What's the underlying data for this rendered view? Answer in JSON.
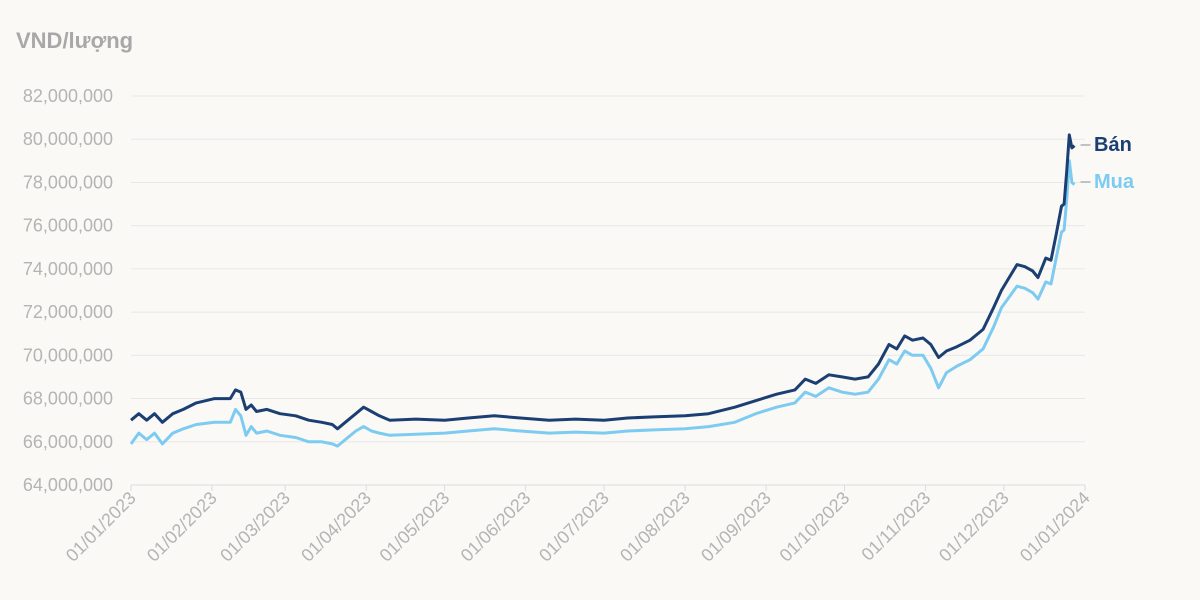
{
  "chart_data": {
    "type": "line",
    "unit_label": "VND/lượng",
    "ylim": [
      64000000,
      82000000
    ],
    "yticks": [
      {
        "value": 64000000,
        "label": "64,000,000"
      },
      {
        "value": 66000000,
        "label": "66,000,000"
      },
      {
        "value": 68000000,
        "label": "68,000,000"
      },
      {
        "value": 70000000,
        "label": "70,000,000"
      },
      {
        "value": 72000000,
        "label": "72,000,000"
      },
      {
        "value": 74000000,
        "label": "74,000,000"
      },
      {
        "value": 76000000,
        "label": "76,000,000"
      },
      {
        "value": 78000000,
        "label": "78,000,000"
      },
      {
        "value": 80000000,
        "label": "80,000,000"
      },
      {
        "value": 82000000,
        "label": "82,000,000"
      }
    ],
    "xlim": [
      "2023-01-01",
      "2024-01-01"
    ],
    "xticks": [
      {
        "date": "2023-01-01",
        "label": "01/01/2023"
      },
      {
        "date": "2023-02-01",
        "label": "01/02/2023"
      },
      {
        "date": "2023-03-01",
        "label": "01/03/2023"
      },
      {
        "date": "2023-04-01",
        "label": "01/04/2023"
      },
      {
        "date": "2023-05-01",
        "label": "01/05/2023"
      },
      {
        "date": "2023-06-01",
        "label": "01/06/2023"
      },
      {
        "date": "2023-07-01",
        "label": "01/07/2023"
      },
      {
        "date": "2023-08-01",
        "label": "01/08/2023"
      },
      {
        "date": "2023-09-01",
        "label": "01/09/2023"
      },
      {
        "date": "2023-10-01",
        "label": "01/10/2023"
      },
      {
        "date": "2023-11-01",
        "label": "01/11/2023"
      },
      {
        "date": "2023-12-01",
        "label": "01/12/2023"
      },
      {
        "date": "2024-01-01",
        "label": "01/01/2024"
      }
    ],
    "grid": "horizontal",
    "legend": "end-of-line labels, right",
    "series": [
      {
        "name": "Bán",
        "color": "#1c3f73",
        "points": [
          [
            "2023-01-01",
            67000000
          ],
          [
            "2023-01-04",
            67300000
          ],
          [
            "2023-01-07",
            67000000
          ],
          [
            "2023-01-10",
            67300000
          ],
          [
            "2023-01-13",
            66900000
          ],
          [
            "2023-01-17",
            67300000
          ],
          [
            "2023-01-21",
            67500000
          ],
          [
            "2023-01-26",
            67800000
          ],
          [
            "2023-02-02",
            68000000
          ],
          [
            "2023-02-08",
            68000000
          ],
          [
            "2023-02-10",
            68400000
          ],
          [
            "2023-02-12",
            68300000
          ],
          [
            "2023-02-14",
            67500000
          ],
          [
            "2023-02-16",
            67700000
          ],
          [
            "2023-02-18",
            67400000
          ],
          [
            "2023-02-22",
            67500000
          ],
          [
            "2023-02-27",
            67300000
          ],
          [
            "2023-03-05",
            67200000
          ],
          [
            "2023-03-10",
            67000000
          ],
          [
            "2023-03-15",
            66900000
          ],
          [
            "2023-03-19",
            66800000
          ],
          [
            "2023-03-21",
            66600000
          ],
          [
            "2023-03-24",
            66900000
          ],
          [
            "2023-03-28",
            67300000
          ],
          [
            "2023-03-31",
            67600000
          ],
          [
            "2023-04-03",
            67400000
          ],
          [
            "2023-04-06",
            67200000
          ],
          [
            "2023-04-10",
            67000000
          ],
          [
            "2023-04-20",
            67050000
          ],
          [
            "2023-05-01",
            67000000
          ],
          [
            "2023-05-10",
            67100000
          ],
          [
            "2023-05-20",
            67200000
          ],
          [
            "2023-05-30",
            67100000
          ],
          [
            "2023-06-10",
            67000000
          ],
          [
            "2023-06-20",
            67050000
          ],
          [
            "2023-07-01",
            67000000
          ],
          [
            "2023-07-10",
            67100000
          ],
          [
            "2023-07-20",
            67150000
          ],
          [
            "2023-08-01",
            67200000
          ],
          [
            "2023-08-10",
            67300000
          ],
          [
            "2023-08-20",
            67600000
          ],
          [
            "2023-08-28",
            67900000
          ],
          [
            "2023-09-05",
            68200000
          ],
          [
            "2023-09-12",
            68400000
          ],
          [
            "2023-09-16",
            68900000
          ],
          [
            "2023-09-20",
            68700000
          ],
          [
            "2023-09-25",
            69100000
          ],
          [
            "2023-09-30",
            69000000
          ],
          [
            "2023-10-05",
            68900000
          ],
          [
            "2023-10-10",
            69000000
          ],
          [
            "2023-10-14",
            69600000
          ],
          [
            "2023-10-18",
            70500000
          ],
          [
            "2023-10-21",
            70300000
          ],
          [
            "2023-10-24",
            70900000
          ],
          [
            "2023-10-27",
            70700000
          ],
          [
            "2023-10-31",
            70800000
          ],
          [
            "2023-11-03",
            70500000
          ],
          [
            "2023-11-06",
            69900000
          ],
          [
            "2023-11-09",
            70200000
          ],
          [
            "2023-11-13",
            70400000
          ],
          [
            "2023-11-18",
            70700000
          ],
          [
            "2023-11-23",
            71200000
          ],
          [
            "2023-11-27",
            72200000
          ],
          [
            "2023-11-30",
            73000000
          ],
          [
            "2023-12-03",
            73600000
          ],
          [
            "2023-12-06",
            74200000
          ],
          [
            "2023-12-09",
            74100000
          ],
          [
            "2023-12-12",
            73900000
          ],
          [
            "2023-12-14",
            73600000
          ],
          [
            "2023-12-17",
            74500000
          ],
          [
            "2023-12-19",
            74400000
          ],
          [
            "2023-12-21",
            75600000
          ],
          [
            "2023-12-23",
            76900000
          ],
          [
            "2023-12-24",
            77000000
          ],
          [
            "2023-12-25",
            78500000
          ],
          [
            "2023-12-26",
            80200000
          ],
          [
            "2023-12-27",
            79600000
          ],
          [
            "2023-12-28",
            79700000
          ]
        ]
      },
      {
        "name": "Mua",
        "color": "#7dcbf0",
        "points": [
          [
            "2023-01-01",
            65900000
          ],
          [
            "2023-01-04",
            66400000
          ],
          [
            "2023-01-07",
            66100000
          ],
          [
            "2023-01-10",
            66400000
          ],
          [
            "2023-01-13",
            65900000
          ],
          [
            "2023-01-17",
            66400000
          ],
          [
            "2023-01-21",
            66600000
          ],
          [
            "2023-01-26",
            66800000
          ],
          [
            "2023-02-02",
            66900000
          ],
          [
            "2023-02-08",
            66900000
          ],
          [
            "2023-02-10",
            67500000
          ],
          [
            "2023-02-12",
            67200000
          ],
          [
            "2023-02-14",
            66300000
          ],
          [
            "2023-02-16",
            66700000
          ],
          [
            "2023-02-18",
            66400000
          ],
          [
            "2023-02-22",
            66500000
          ],
          [
            "2023-02-27",
            66300000
          ],
          [
            "2023-03-05",
            66200000
          ],
          [
            "2023-03-10",
            66000000
          ],
          [
            "2023-03-15",
            66000000
          ],
          [
            "2023-03-19",
            65900000
          ],
          [
            "2023-03-21",
            65800000
          ],
          [
            "2023-03-24",
            66100000
          ],
          [
            "2023-03-28",
            66500000
          ],
          [
            "2023-03-31",
            66700000
          ],
          [
            "2023-04-03",
            66500000
          ],
          [
            "2023-04-06",
            66400000
          ],
          [
            "2023-04-10",
            66300000
          ],
          [
            "2023-04-20",
            66350000
          ],
          [
            "2023-05-01",
            66400000
          ],
          [
            "2023-05-10",
            66500000
          ],
          [
            "2023-05-20",
            66600000
          ],
          [
            "2023-05-30",
            66500000
          ],
          [
            "2023-06-10",
            66400000
          ],
          [
            "2023-06-20",
            66450000
          ],
          [
            "2023-07-01",
            66400000
          ],
          [
            "2023-07-10",
            66500000
          ],
          [
            "2023-07-20",
            66550000
          ],
          [
            "2023-08-01",
            66600000
          ],
          [
            "2023-08-10",
            66700000
          ],
          [
            "2023-08-20",
            66900000
          ],
          [
            "2023-08-28",
            67300000
          ],
          [
            "2023-09-05",
            67600000
          ],
          [
            "2023-09-12",
            67800000
          ],
          [
            "2023-09-16",
            68300000
          ],
          [
            "2023-09-20",
            68100000
          ],
          [
            "2023-09-25",
            68500000
          ],
          [
            "2023-09-30",
            68300000
          ],
          [
            "2023-10-05",
            68200000
          ],
          [
            "2023-10-10",
            68300000
          ],
          [
            "2023-10-14",
            68900000
          ],
          [
            "2023-10-18",
            69800000
          ],
          [
            "2023-10-21",
            69600000
          ],
          [
            "2023-10-24",
            70200000
          ],
          [
            "2023-10-27",
            70000000
          ],
          [
            "2023-10-31",
            70000000
          ],
          [
            "2023-11-03",
            69400000
          ],
          [
            "2023-11-06",
            68500000
          ],
          [
            "2023-11-09",
            69200000
          ],
          [
            "2023-11-13",
            69500000
          ],
          [
            "2023-11-18",
            69800000
          ],
          [
            "2023-11-23",
            70300000
          ],
          [
            "2023-11-27",
            71300000
          ],
          [
            "2023-11-30",
            72200000
          ],
          [
            "2023-12-03",
            72700000
          ],
          [
            "2023-12-06",
            73200000
          ],
          [
            "2023-12-09",
            73100000
          ],
          [
            "2023-12-12",
            72900000
          ],
          [
            "2023-12-14",
            72600000
          ],
          [
            "2023-12-17",
            73400000
          ],
          [
            "2023-12-19",
            73300000
          ],
          [
            "2023-12-21",
            74500000
          ],
          [
            "2023-12-23",
            75700000
          ],
          [
            "2023-12-24",
            75800000
          ],
          [
            "2023-12-25",
            77200000
          ],
          [
            "2023-12-26",
            79000000
          ],
          [
            "2023-12-27",
            78000000
          ],
          [
            "2023-12-28",
            77900000
          ]
        ]
      }
    ]
  }
}
